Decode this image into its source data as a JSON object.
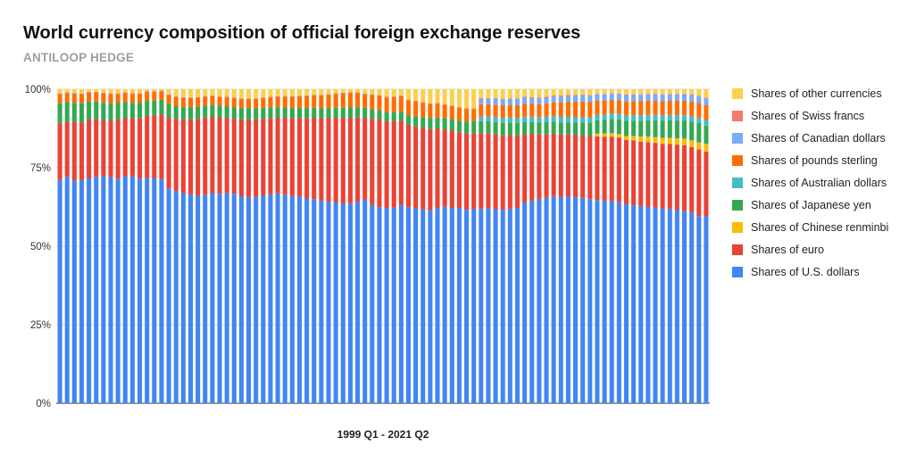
{
  "chart_data": {
    "type": "bar",
    "stacked": true,
    "normalized": true,
    "title": "World currency composition of official foreign exchange reserves",
    "subtitle": "ANTILOOP HEDGE",
    "xlabel": "1999 Q1 - 2021 Q2",
    "ylabel": "",
    "ylim": [
      0,
      100
    ],
    "yticks": [
      "0%",
      "25%",
      "50%",
      "75%",
      "100%"
    ],
    "grid": true,
    "legend_position": "right",
    "period_count": 90,
    "series": [
      {
        "name": "Shares of U.S. dollars",
        "color": "#4285f4",
        "values": [
          71.2,
          72.1,
          70.9,
          71.1,
          71.6,
          72.1,
          72.4,
          72.0,
          71.5,
          72.3,
          72.2,
          71.5,
          71.7,
          71.6,
          71.4,
          68.4,
          67.6,
          66.9,
          66.5,
          66.2,
          66.4,
          66.9,
          66.7,
          67.0,
          66.7,
          65.9,
          65.6,
          65.8,
          66.2,
          66.5,
          66.8,
          66.4,
          66.0,
          65.7,
          65.2,
          65.0,
          64.5,
          64.1,
          63.9,
          63.5,
          63.7,
          64.1,
          64.9,
          63.2,
          62.4,
          62.1,
          62.3,
          63.2,
          62.4,
          62.0,
          61.7,
          61.4,
          62.1,
          62.7,
          62.2,
          62.1,
          61.6,
          61.8,
          62.0,
          62.1,
          61.8,
          61.6,
          61.9,
          62.2,
          63.8,
          64.4,
          65.1,
          65.4,
          66.0,
          65.7,
          65.8,
          65.6,
          65.4,
          65.0,
          64.7,
          64.5,
          64.4,
          64.0,
          63.3,
          63.0,
          62.8,
          62.5,
          62.3,
          62.1,
          61.9,
          61.7,
          61.5,
          60.9,
          59.6,
          59.5
        ]
      },
      {
        "name": "Shares of euro",
        "color": "#ea4335",
        "values": [
          17.9,
          17.5,
          18.6,
          18.3,
          18.6,
          18.4,
          17.8,
          18.1,
          18.8,
          18.6,
          18.6,
          19.2,
          19.8,
          20.1,
          20.6,
          22.5,
          22.9,
          23.5,
          23.9,
          24.3,
          24.6,
          24.3,
          24.2,
          23.9,
          23.9,
          24.5,
          24.8,
          24.6,
          24.4,
          24.3,
          24.1,
          24.5,
          24.8,
          25.1,
          25.6,
          25.9,
          26.3,
          26.8,
          27.0,
          27.4,
          27.2,
          26.9,
          26.0,
          27.4,
          27.9,
          27.7,
          27.5,
          26.8,
          26.3,
          26.1,
          26.0,
          25.9,
          25.4,
          24.7,
          24.6,
          24.2,
          24.3,
          24.2,
          24.0,
          23.8,
          23.8,
          23.7,
          23.5,
          23.1,
          21.7,
          21.2,
          20.5,
          20.3,
          19.9,
          19.9,
          19.8,
          19.9,
          20.0,
          20.1,
          20.3,
          20.4,
          20.5,
          20.6,
          20.5,
          20.7,
          20.5,
          20.6,
          20.7,
          20.6,
          20.8,
          20.9,
          21.0,
          20.8,
          21.2,
          20.6
        ]
      },
      {
        "name": "Shares of Chinese renminbi",
        "color": "#fbbc04",
        "values": [
          0,
          0,
          0,
          0,
          0,
          0,
          0,
          0,
          0,
          0,
          0,
          0,
          0,
          0,
          0,
          0,
          0,
          0,
          0,
          0,
          0,
          0,
          0,
          0,
          0,
          0,
          0,
          0,
          0,
          0,
          0,
          0,
          0,
          0,
          0,
          0,
          0,
          0,
          0,
          0,
          0,
          0,
          0,
          0,
          0,
          0,
          0,
          0,
          0,
          0,
          0,
          0,
          0,
          0,
          0,
          0,
          0,
          0,
          0,
          0,
          0,
          0,
          0,
          0,
          0,
          0,
          0,
          0,
          0,
          0,
          0,
          0,
          0,
          0,
          0.9,
          1.0,
          1.1,
          1.2,
          1.3,
          1.4,
          1.6,
          1.8,
          1.8,
          1.9,
          1.9,
          2.0,
          2.1,
          2.2,
          2.3,
          2.5
        ]
      },
      {
        "name": "Shares of Japanese yen",
        "color": "#34a853",
        "values": [
          6.4,
          6.3,
          6.2,
          6.1,
          5.9,
          5.6,
          5.5,
          5.4,
          5.3,
          5.0,
          4.9,
          4.9,
          4.8,
          4.7,
          4.6,
          4.4,
          4.1,
          3.9,
          3.9,
          3.9,
          3.8,
          3.8,
          3.8,
          3.7,
          3.7,
          3.6,
          3.6,
          3.5,
          3.5,
          3.4,
          3.4,
          3.3,
          3.2,
          3.2,
          3.2,
          3.2,
          3.1,
          3.1,
          3.2,
          3.2,
          3.3,
          3.2,
          3.2,
          3.1,
          3.0,
          2.9,
          2.9,
          2.9,
          3.0,
          3.3,
          3.4,
          3.5,
          3.5,
          3.6,
          3.7,
          3.7,
          3.8,
          3.8,
          3.8,
          3.9,
          4.0,
          4.0,
          4.0,
          4.0,
          3.9,
          3.8,
          3.8,
          3.8,
          3.7,
          3.8,
          3.8,
          3.9,
          4.0,
          4.1,
          4.2,
          4.3,
          4.5,
          4.6,
          4.8,
          4.9,
          5.1,
          5.2,
          5.4,
          5.5,
          5.6,
          5.7,
          5.8,
          6.0,
          6.1,
          5.8
        ]
      },
      {
        "name": "Shares of Australian dollars",
        "color": "#46bdc6",
        "values": [
          0,
          0,
          0,
          0,
          0,
          0,
          0,
          0,
          0,
          0,
          0,
          0,
          0,
          0,
          0,
          0,
          0,
          0,
          0,
          0,
          0,
          0,
          0,
          0,
          0,
          0,
          0,
          0,
          0,
          0,
          0,
          0,
          0,
          0,
          0,
          0,
          0,
          0,
          0,
          0,
          0,
          0,
          0,
          0,
          0,
          0,
          0,
          0,
          0,
          0,
          0,
          0,
          0,
          0,
          0,
          0,
          0,
          0,
          1.5,
          1.5,
          1.6,
          1.6,
          1.6,
          1.6,
          1.7,
          1.7,
          1.7,
          1.7,
          1.8,
          1.8,
          1.8,
          1.8,
          1.8,
          1.8,
          1.7,
          1.7,
          1.7,
          1.7,
          1.7,
          1.7,
          1.7,
          1.7,
          1.7,
          1.7,
          1.7,
          1.7,
          1.7,
          1.7,
          1.8,
          1.8
        ]
      },
      {
        "name": "Shares of pounds sterling",
        "color": "#ff6d01",
        "values": [
          2.9,
          2.8,
          2.8,
          2.8,
          2.8,
          2.8,
          2.9,
          2.9,
          2.8,
          2.8,
          2.8,
          2.8,
          2.8,
          2.7,
          2.7,
          2.8,
          2.9,
          2.9,
          2.9,
          2.9,
          2.8,
          2.8,
          2.8,
          2.8,
          2.9,
          2.9,
          2.9,
          3.0,
          3.1,
          3.2,
          3.3,
          3.4,
          3.6,
          3.7,
          3.8,
          3.9,
          4.1,
          4.2,
          4.4,
          4.6,
          4.7,
          4.6,
          4.3,
          4.5,
          4.6,
          4.7,
          4.8,
          4.9,
          4.8,
          4.7,
          4.6,
          4.5,
          4.4,
          4.2,
          4.1,
          4.1,
          4.0,
          3.9,
          3.9,
          3.9,
          3.9,
          4.0,
          4.0,
          4.0,
          4.0,
          4.0,
          4.1,
          4.2,
          4.4,
          4.6,
          4.8,
          4.9,
          4.9,
          4.9,
          4.6,
          4.5,
          4.4,
          4.4,
          4.5,
          4.5,
          4.5,
          4.5,
          4.5,
          4.5,
          4.5,
          4.6,
          4.6,
          4.7,
          4.6,
          4.7
        ]
      },
      {
        "name": "Shares of Canadian dollars",
        "color": "#7baaf7",
        "values": [
          0,
          0,
          0,
          0,
          0,
          0,
          0,
          0,
          0,
          0,
          0,
          0,
          0,
          0,
          0,
          0,
          0,
          0,
          0,
          0,
          0,
          0,
          0,
          0,
          0,
          0,
          0,
          0,
          0,
          0,
          0,
          0,
          0,
          0,
          0,
          0,
          0,
          0,
          0,
          0,
          0,
          0,
          0,
          0,
          0,
          0,
          0,
          0,
          0,
          0,
          0,
          0,
          0,
          0,
          0,
          0,
          0,
          0,
          1.8,
          1.8,
          1.9,
          1.9,
          1.9,
          2.0,
          2.0,
          1.9,
          1.9,
          1.9,
          1.9,
          1.9,
          1.9,
          1.9,
          2.0,
          2.0,
          1.9,
          1.9,
          1.9,
          1.9,
          2.0,
          2.0,
          2.0,
          2.0,
          2.0,
          2.0,
          2.0,
          2.0,
          2.0,
          2.1,
          2.1,
          2.2
        ]
      },
      {
        "name": "Shares of Swiss francs",
        "color": "#f07b72",
        "values": [
          0.3,
          0.3,
          0.3,
          0.3,
          0.3,
          0.3,
          0.3,
          0.3,
          0.3,
          0.3,
          0.3,
          0.3,
          0.3,
          0.3,
          0.3,
          0.3,
          0.3,
          0.3,
          0.2,
          0.2,
          0.2,
          0.2,
          0.2,
          0.2,
          0.2,
          0.2,
          0.2,
          0.2,
          0.2,
          0.2,
          0.2,
          0.2,
          0.2,
          0.2,
          0.2,
          0.2,
          0.2,
          0.2,
          0.2,
          0.2,
          0.2,
          0.2,
          0.2,
          0.2,
          0.2,
          0.2,
          0.2,
          0.2,
          0.2,
          0.2,
          0.2,
          0.2,
          0.2,
          0.2,
          0.2,
          0.2,
          0.2,
          0.2,
          0.2,
          0.2,
          0.2,
          0.2,
          0.2,
          0.2,
          0.3,
          0.3,
          0.3,
          0.3,
          0.3,
          0.3,
          0.3,
          0.2,
          0.2,
          0.2,
          0.2,
          0.2,
          0.2,
          0.2,
          0.2,
          0.2,
          0.2,
          0.2,
          0.2,
          0.2,
          0.2,
          0.2,
          0.2,
          0.2,
          0.2,
          0.2
        ]
      },
      {
        "name": "Shares of other currencies",
        "color": "#fcd04f",
        "values": [
          1.3,
          1.0,
          1.2,
          1.4,
          0.8,
          0.8,
          1.1,
          1.3,
          1.3,
          1.0,
          1.2,
          1.3,
          0.6,
          0.6,
          0.4,
          1.6,
          2.2,
          2.5,
          2.6,
          2.5,
          2.2,
          2.0,
          2.3,
          2.4,
          2.6,
          2.9,
          2.9,
          2.9,
          2.6,
          2.4,
          2.2,
          2.2,
          2.2,
          2.1,
          2.0,
          1.8,
          1.8,
          1.6,
          1.3,
          1.1,
          0.9,
          1.0,
          1.4,
          1.6,
          1.9,
          2.4,
          2.3,
          2.0,
          3.3,
          3.7,
          4.1,
          4.5,
          4.4,
          4.8,
          5.2,
          5.7,
          6.1,
          6.1,
          2.8,
          2.8,
          2.8,
          3.0,
          2.9,
          2.9,
          2.4,
          2.5,
          2.6,
          2.4,
          2.0,
          2.0,
          1.8,
          1.8,
          1.7,
          1.9,
          1.5,
          1.5,
          1.3,
          1.4,
          1.7,
          1.6,
          1.6,
          1.5,
          1.5,
          1.6,
          1.5,
          1.5,
          1.5,
          1.6,
          2.1,
          2.7
        ]
      }
    ]
  }
}
